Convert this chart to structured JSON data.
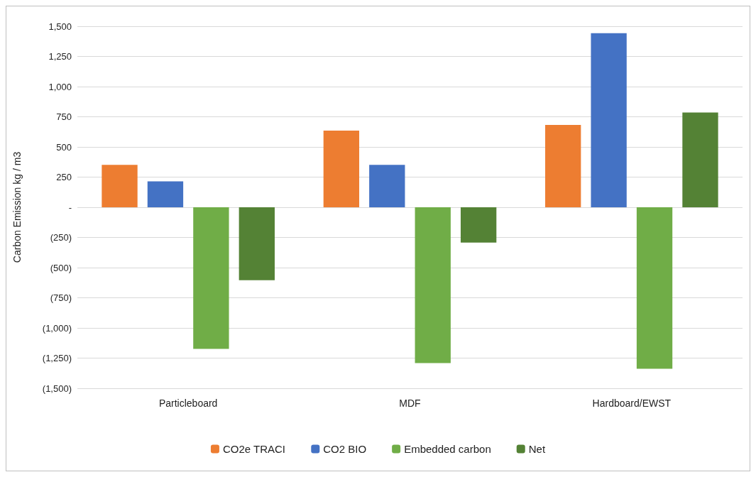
{
  "chart_data": {
    "type": "bar",
    "ylabel": "Carbon Emission kg / m3",
    "categories": [
      "Particleboard",
      "MDF",
      "Hardboard/EWST"
    ],
    "series": [
      {
        "name": "CO2e TRACI",
        "color": "#ed7d31",
        "values": [
          352,
          635,
          682
        ]
      },
      {
        "name": "CO2 BIO",
        "color": "#4472c4",
        "values": [
          214,
          352,
          1443
        ]
      },
      {
        "name": "Embedded carbon",
        "color": "#70ad47",
        "values": [
          -1173,
          -1291,
          -1338
        ]
      },
      {
        "name": "Net",
        "color": "#548235",
        "values": [
          -605,
          -293,
          786
        ]
      }
    ],
    "ylim": [
      -1500,
      1500
    ],
    "yticks": [
      {
        "value": -1500,
        "label": "(1,500)"
      },
      {
        "value": -1250,
        "label": "(1,250)"
      },
      {
        "value": -1000,
        "label": "(1,000)"
      },
      {
        "value": -750,
        "label": "(750)"
      },
      {
        "value": -500,
        "label": "(500)"
      },
      {
        "value": -250,
        "label": "(250)"
      },
      {
        "value": 0,
        "label": "-"
      },
      {
        "value": 250,
        "label": "250"
      },
      {
        "value": 500,
        "label": "500"
      },
      {
        "value": 750,
        "label": "750"
      },
      {
        "value": 1000,
        "label": "1,000"
      },
      {
        "value": 1250,
        "label": "1,250"
      },
      {
        "value": 1500,
        "label": "1,500"
      }
    ],
    "grid": "y",
    "legend": "bottom"
  }
}
